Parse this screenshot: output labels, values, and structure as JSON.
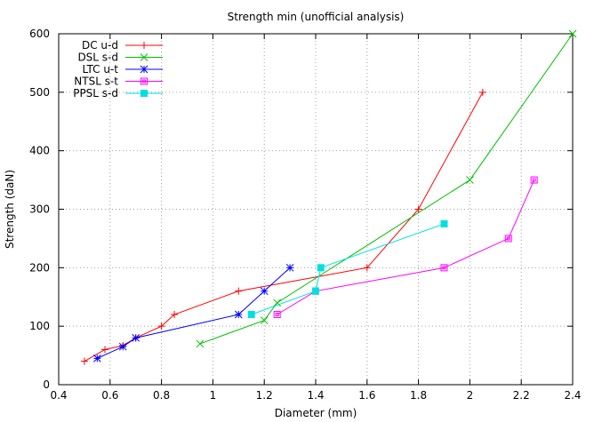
{
  "chart_data": {
    "type": "line",
    "title": "Strength min (unofficial analysis)",
    "xlabel": "Diameter (mm)",
    "ylabel": "Strength (daN)",
    "xlim": [
      0.4,
      2.4
    ],
    "ylim": [
      0,
      600
    ],
    "xticks": [
      "0.4",
      "0.6",
      "0.8",
      "1",
      "1.2",
      "1.4",
      "1.6",
      "1.8",
      "2",
      "2.2",
      "2.4"
    ],
    "yticks": [
      "0",
      "100",
      "200",
      "300",
      "400",
      "500",
      "600"
    ],
    "grid": true,
    "legend_position": "top-left",
    "series": [
      {
        "name": "DC u-d",
        "color": "#ff0000",
        "marker": "plus",
        "x": [
          0.5,
          0.58,
          0.65,
          0.7,
          0.8,
          0.85,
          1.1,
          1.6,
          1.8,
          2.05
        ],
        "y": [
          40,
          60,
          67,
          80,
          100,
          120,
          160,
          200,
          300,
          500
        ]
      },
      {
        "name": "DSL s-d",
        "color": "#00c000",
        "marker": "cross",
        "x": [
          0.95,
          1.2,
          1.25,
          2.0,
          2.4
        ],
        "y": [
          70,
          110,
          140,
          350,
          600
        ]
      },
      {
        "name": "LTC u-t",
        "color": "#0000ff",
        "marker": "star",
        "x": [
          0.55,
          0.65,
          0.7,
          1.1,
          1.2,
          1.3
        ],
        "y": [
          45,
          65,
          80,
          120,
          160,
          200
        ]
      },
      {
        "name": "NTSL s-t",
        "color": "#ff00ff",
        "marker": "square-open",
        "x": [
          1.25,
          1.4,
          1.9,
          2.15,
          2.25
        ],
        "y": [
          120,
          160,
          200,
          250,
          350
        ]
      },
      {
        "name": "PPSL s-d",
        "color": "#00e0e0",
        "marker": "square-filled",
        "x": [
          1.15,
          1.4,
          1.42,
          1.9
        ],
        "y": [
          120,
          160,
          200,
          275
        ]
      }
    ]
  }
}
